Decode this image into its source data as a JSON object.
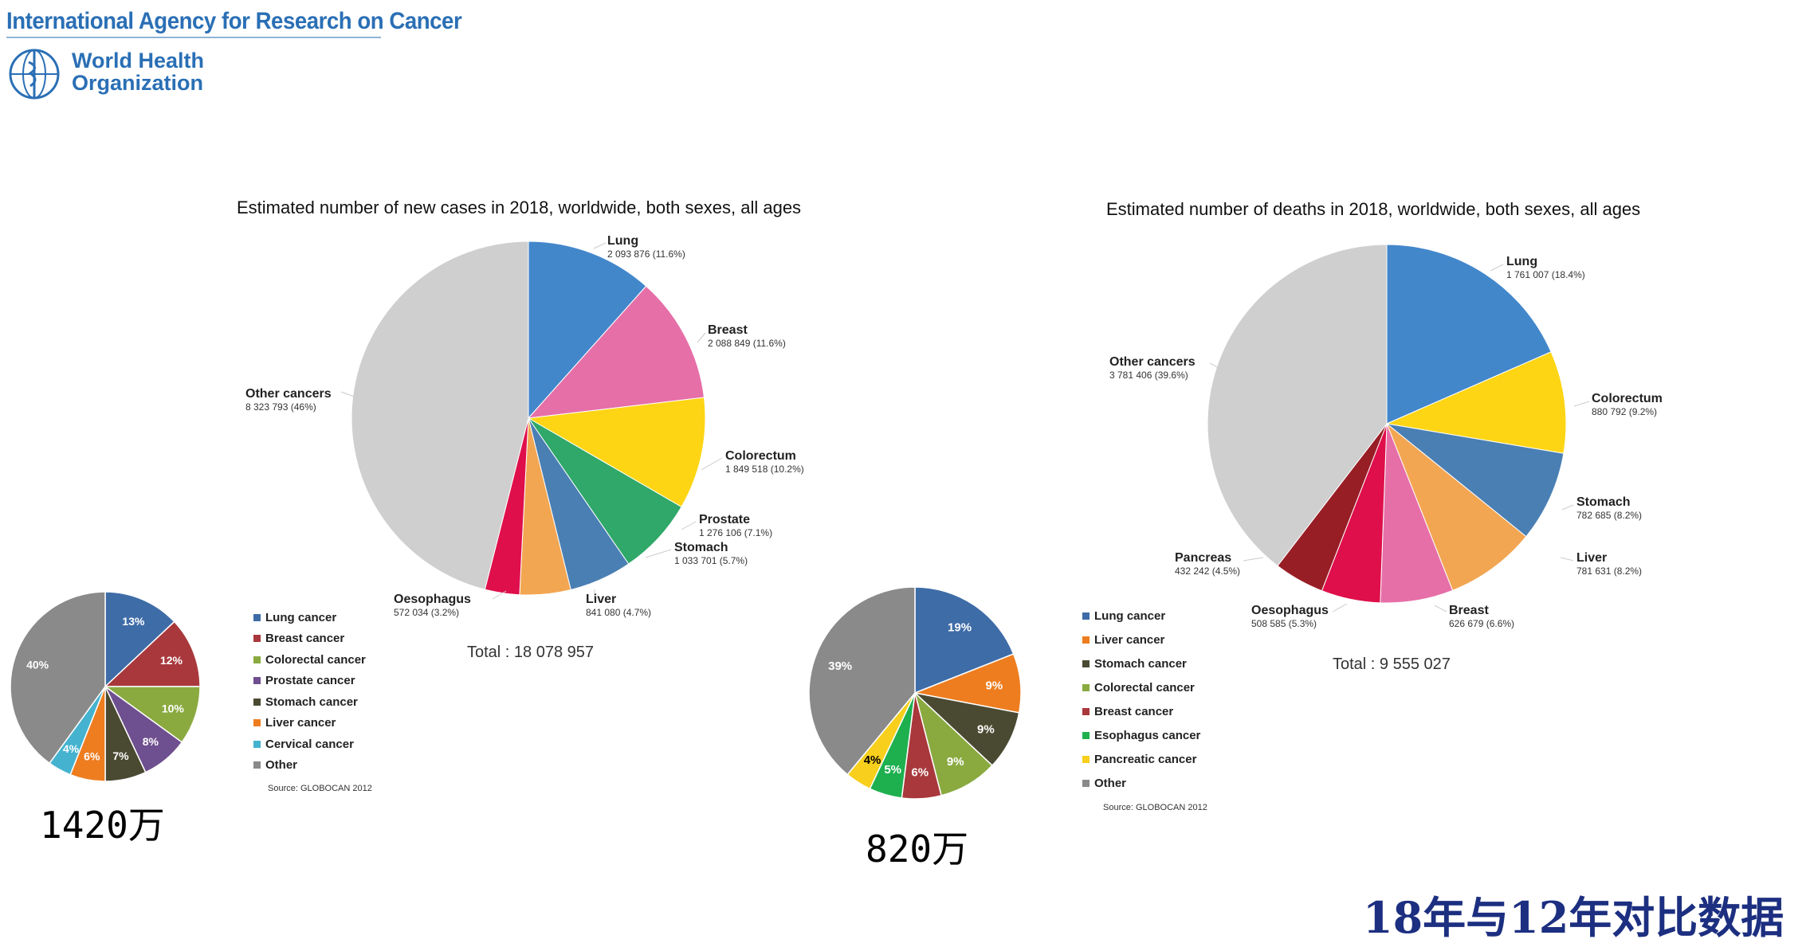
{
  "header": {
    "iarc_name": "International Agency for Research on Cancer",
    "who_line1": "World Health",
    "who_line2": "Organization"
  },
  "footer_text": "18年与12年对比数据",
  "colors": {
    "lung": "#4387cb",
    "breast": "#e66fa8",
    "colorectum": "#fdd514",
    "prostate": "#2fa869",
    "stomach": "#4a7fb3",
    "liver": "#f2a652",
    "oesophagus": "#df0f4b",
    "pancreas": "#981e26",
    "other": "#cfcfcf"
  },
  "chart_data": [
    {
      "type": "pie",
      "title": "Estimated number of new cases in 2018, worldwide, both sexes, all ages",
      "total_label": "Total : 18 078 957",
      "slices": [
        {
          "name": "Lung",
          "value": 2093876,
          "value_label": "2 093 876 (11.6%)",
          "color": "#4387cb"
        },
        {
          "name": "Breast",
          "value": 2088849,
          "value_label": "2 088 849 (11.6%)",
          "color": "#e66fa8"
        },
        {
          "name": "Colorectum",
          "value": 1849518,
          "value_label": "1 849 518 (10.2%)",
          "color": "#fdd514"
        },
        {
          "name": "Prostate",
          "value": 1276106,
          "value_label": "1 276 106 (7.1%)",
          "color": "#2fa869"
        },
        {
          "name": "Stomach",
          "value": 1033701,
          "value_label": "1 033 701 (5.7%)",
          "color": "#4a7fb3"
        },
        {
          "name": "Liver",
          "value": 841080,
          "value_label": "841 080 (4.7%)",
          "color": "#f2a652"
        },
        {
          "name": "Oesophagus",
          "value": 572034,
          "value_label": "572 034 (3.2%)",
          "color": "#df0f4b"
        },
        {
          "name": "Other cancers",
          "value": 8323793,
          "value_label": "8 323 793 (46%)",
          "color": "#cfcfcf"
        }
      ]
    },
    {
      "type": "pie",
      "title": "Estimated number of deaths in 2018, worldwide, both sexes, all ages",
      "total_label": "Total : 9 555 027",
      "slices": [
        {
          "name": "Lung",
          "value": 1761007,
          "value_label": "1 761 007 (18.4%)",
          "color": "#4387cb"
        },
        {
          "name": "Colorectum",
          "value": 880792,
          "value_label": "880 792 (9.2%)",
          "color": "#fdd514"
        },
        {
          "name": "Stomach",
          "value": 782685,
          "value_label": "782 685 (8.2%)",
          "color": "#4a7fb3"
        },
        {
          "name": "Liver",
          "value": 781631,
          "value_label": "781 631 (8.2%)",
          "color": "#f2a652"
        },
        {
          "name": "Breast",
          "value": 626679,
          "value_label": "626 679 (6.6%)",
          "color": "#e66fa8"
        },
        {
          "name": "Oesophagus",
          "value": 508585,
          "value_label": "508 585 (5.3%)",
          "color": "#df0f4b"
        },
        {
          "name": "Pancreas",
          "value": 432242,
          "value_label": "432 242 (4.5%)",
          "color": "#981e26"
        },
        {
          "name": "Other cancers",
          "value": 3781406,
          "value_label": "3 781 406 (39.6%)",
          "color": "#cfcfcf"
        }
      ]
    },
    {
      "type": "pie",
      "title": "",
      "big_label": "1420万",
      "source": "Source: GLOBOCAN 2012",
      "slices": [
        {
          "name": "Lung cancer",
          "value": 13,
          "label": "13%",
          "color": "#3e6ca7"
        },
        {
          "name": "Breast cancer",
          "value": 12,
          "label": "12%",
          "color": "#a8383c"
        },
        {
          "name": "Colorectal cancer",
          "value": 10,
          "label": "10%",
          "color": "#8aaa40"
        },
        {
          "name": "Prostate cancer",
          "value": 8,
          "label": "8%",
          "color": "#6e4f8f"
        },
        {
          "name": "Stomach cancer",
          "value": 7,
          "label": "7%",
          "color": "#4a4a32"
        },
        {
          "name": "Liver cancer",
          "value": 6,
          "label": "6%",
          "color": "#ee7d1f"
        },
        {
          "name": "Cervical cancer",
          "value": 4,
          "label": "4%",
          "color": "#45b3cf"
        },
        {
          "name": "Other",
          "value": 40,
          "label": "40%",
          "color": "#8a8a8a"
        }
      ]
    },
    {
      "type": "pie",
      "title": "",
      "big_label": "820万",
      "source": "Source: GLOBOCAN 2012",
      "slices": [
        {
          "name": "Lung cancer",
          "value": 19,
          "label": "19%",
          "color": "#3e6ca7"
        },
        {
          "name": "Liver cancer",
          "value": 9,
          "label": "9%",
          "color": "#ee7d1f"
        },
        {
          "name": "Stomach cancer",
          "value": 9,
          "label": "9%",
          "color": "#4a4a32"
        },
        {
          "name": "Colorectal cancer",
          "value": 9,
          "label": "9%",
          "color": "#8aaa40"
        },
        {
          "name": "Breast cancer",
          "value": 6,
          "label": "6%",
          "color": "#a8383c"
        },
        {
          "name": "Esophagus cancer",
          "value": 5,
          "label": "5%",
          "color": "#1eb04f"
        },
        {
          "name": "Pancreatic cancer",
          "value": 4,
          "label": "4%",
          "color": "#f7cf1c"
        },
        {
          "name": "Other",
          "value": 39,
          "label": "39%",
          "color": "#8a8a8a"
        }
      ]
    }
  ]
}
